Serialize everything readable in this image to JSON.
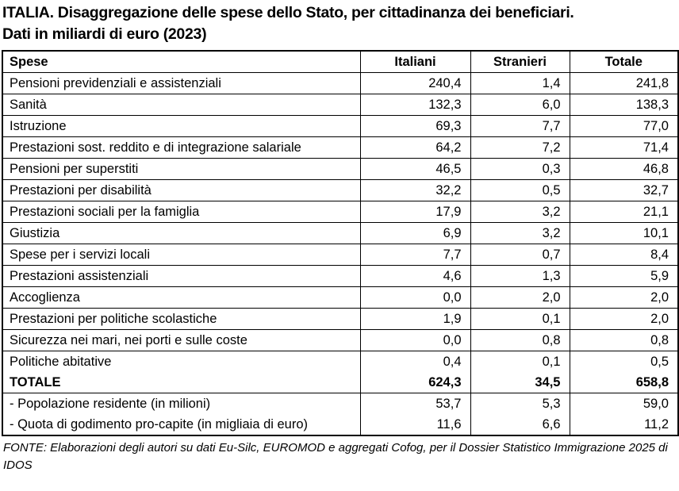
{
  "header": {
    "title_lines": [
      "ITALIA. Disaggregazione delle spese dello Stato, per cittadinanza dei beneficiari.",
      "Dati in miliardi di euro (2023)"
    ]
  },
  "table": {
    "columns": [
      "Spese",
      "Italiani",
      "Stranieri",
      "Totale"
    ],
    "rows": [
      {
        "label": "Pensioni previdenziali e assistenziali",
        "italiani": "240,4",
        "stranieri": "1,4",
        "totale": "241,8"
      },
      {
        "label": "Sanità",
        "italiani": "132,3",
        "stranieri": "6,0",
        "totale": "138,3"
      },
      {
        "label": "Istruzione",
        "italiani": "69,3",
        "stranieri": "7,7",
        "totale": "77,0"
      },
      {
        "label": "Prestazioni sost. reddito e di integrazione salariale",
        "italiani": "64,2",
        "stranieri": "7,2",
        "totale": "71,4"
      },
      {
        "label": "Pensioni per superstiti",
        "italiani": "46,5",
        "stranieri": "0,3",
        "totale": "46,8"
      },
      {
        "label": "Prestazioni per disabilità",
        "italiani": "32,2",
        "stranieri": "0,5",
        "totale": "32,7"
      },
      {
        "label": "Prestazioni sociali per la famiglia",
        "italiani": "17,9",
        "stranieri": "3,2",
        "totale": "21,1"
      },
      {
        "label": "Giustizia",
        "italiani": "6,9",
        "stranieri": "3,2",
        "totale": "10,1"
      },
      {
        "label": "Spese per i servizi locali",
        "italiani": "7,7",
        "stranieri": "0,7",
        "totale": "8,4"
      },
      {
        "label": "Prestazioni assistenziali",
        "italiani": "4,6",
        "stranieri": "1,3",
        "totale": "5,9"
      },
      {
        "label": "Accoglienza",
        "italiani": "0,0",
        "stranieri": "2,0",
        "totale": "2,0"
      },
      {
        "label": "Prestazioni per politiche scolastiche",
        "italiani": "1,9",
        "stranieri": "0,1",
        "totale": "2,0"
      },
      {
        "label": "Sicurezza nei mari, nei porti e sulle coste",
        "italiani": "0,0",
        "stranieri": "0,8",
        "totale": "0,8"
      },
      {
        "label": "Politiche abitative",
        "italiani": "0,4",
        "stranieri": "0,1",
        "totale": "0,5",
        "no_bottom": true
      },
      {
        "label": "TOTALE",
        "italiani": "624,3",
        "stranieri": "34,5",
        "totale": "658,8",
        "bold": true
      },
      {
        "label": "- Popolazione residente (in milioni)",
        "italiani": "53,7",
        "stranieri": "5,3",
        "totale": "59,0",
        "no_bottom": true
      },
      {
        "label": "- Quota di godimento pro-capite (in migliaia di euro)",
        "italiani": "11,6",
        "stranieri": "6,6",
        "totale": "11,2"
      }
    ]
  },
  "footer": {
    "source": "FONTE: Elaborazioni degli autori su dati Eu-Silc, EUROMOD e aggregati Cofog, per il Dossier Statistico Immigrazione 2025 di IDOS"
  },
  "colors": {
    "text": "#000000",
    "background": "#ffffff",
    "border": "#000000"
  },
  "chart_data": {
    "type": "table",
    "title": "ITALIA. Disaggregazione delle spese dello Stato, per cittadinanza dei beneficiari. Dati in miliardi di euro (2023)",
    "columns": [
      "Spese",
      "Italiani",
      "Stranieri",
      "Totale"
    ],
    "unit": "miliardi di euro",
    "year": "2023",
    "series": [
      {
        "name": "Italiani",
        "values": [
          240.4,
          132.3,
          69.3,
          64.2,
          46.5,
          32.2,
          17.9,
          6.9,
          7.7,
          4.6,
          0.0,
          1.9,
          0.0,
          0.4
        ]
      },
      {
        "name": "Stranieri",
        "values": [
          1.4,
          6.0,
          7.7,
          7.2,
          0.3,
          0.5,
          3.2,
          3.2,
          0.7,
          1.3,
          2.0,
          0.1,
          0.8,
          0.1
        ]
      },
      {
        "name": "Totale",
        "values": [
          241.8,
          138.3,
          77.0,
          71.4,
          46.8,
          32.7,
          21.1,
          10.1,
          8.4,
          5.9,
          2.0,
          2.0,
          0.8,
          0.5
        ]
      }
    ],
    "categories": [
      "Pensioni previdenziali e assistenziali",
      "Sanità",
      "Istruzione",
      "Prestazioni sost. reddito e di integrazione salariale",
      "Pensioni per superstiti",
      "Prestazioni per disabilità",
      "Prestazioni sociali per la famiglia",
      "Giustizia",
      "Spese per i servizi locali",
      "Prestazioni assistenziali",
      "Accoglienza",
      "Prestazioni per politiche scolastiche",
      "Sicurezza nei mari, nei porti e sulle coste",
      "Politiche abitative"
    ],
    "totals_row": {
      "label": "TOTALE",
      "italiani": 624.3,
      "stranieri": 34.5,
      "totale": 658.8
    },
    "extra_rows": [
      {
        "label": "- Popolazione residente (in milioni)",
        "italiani": 53.7,
        "stranieri": 5.3,
        "totale": 59.0
      },
      {
        "label": "- Quota di godimento pro-capite (in migliaia di euro)",
        "italiani": 11.6,
        "stranieri": 6.6,
        "totale": 11.2
      }
    ]
  }
}
